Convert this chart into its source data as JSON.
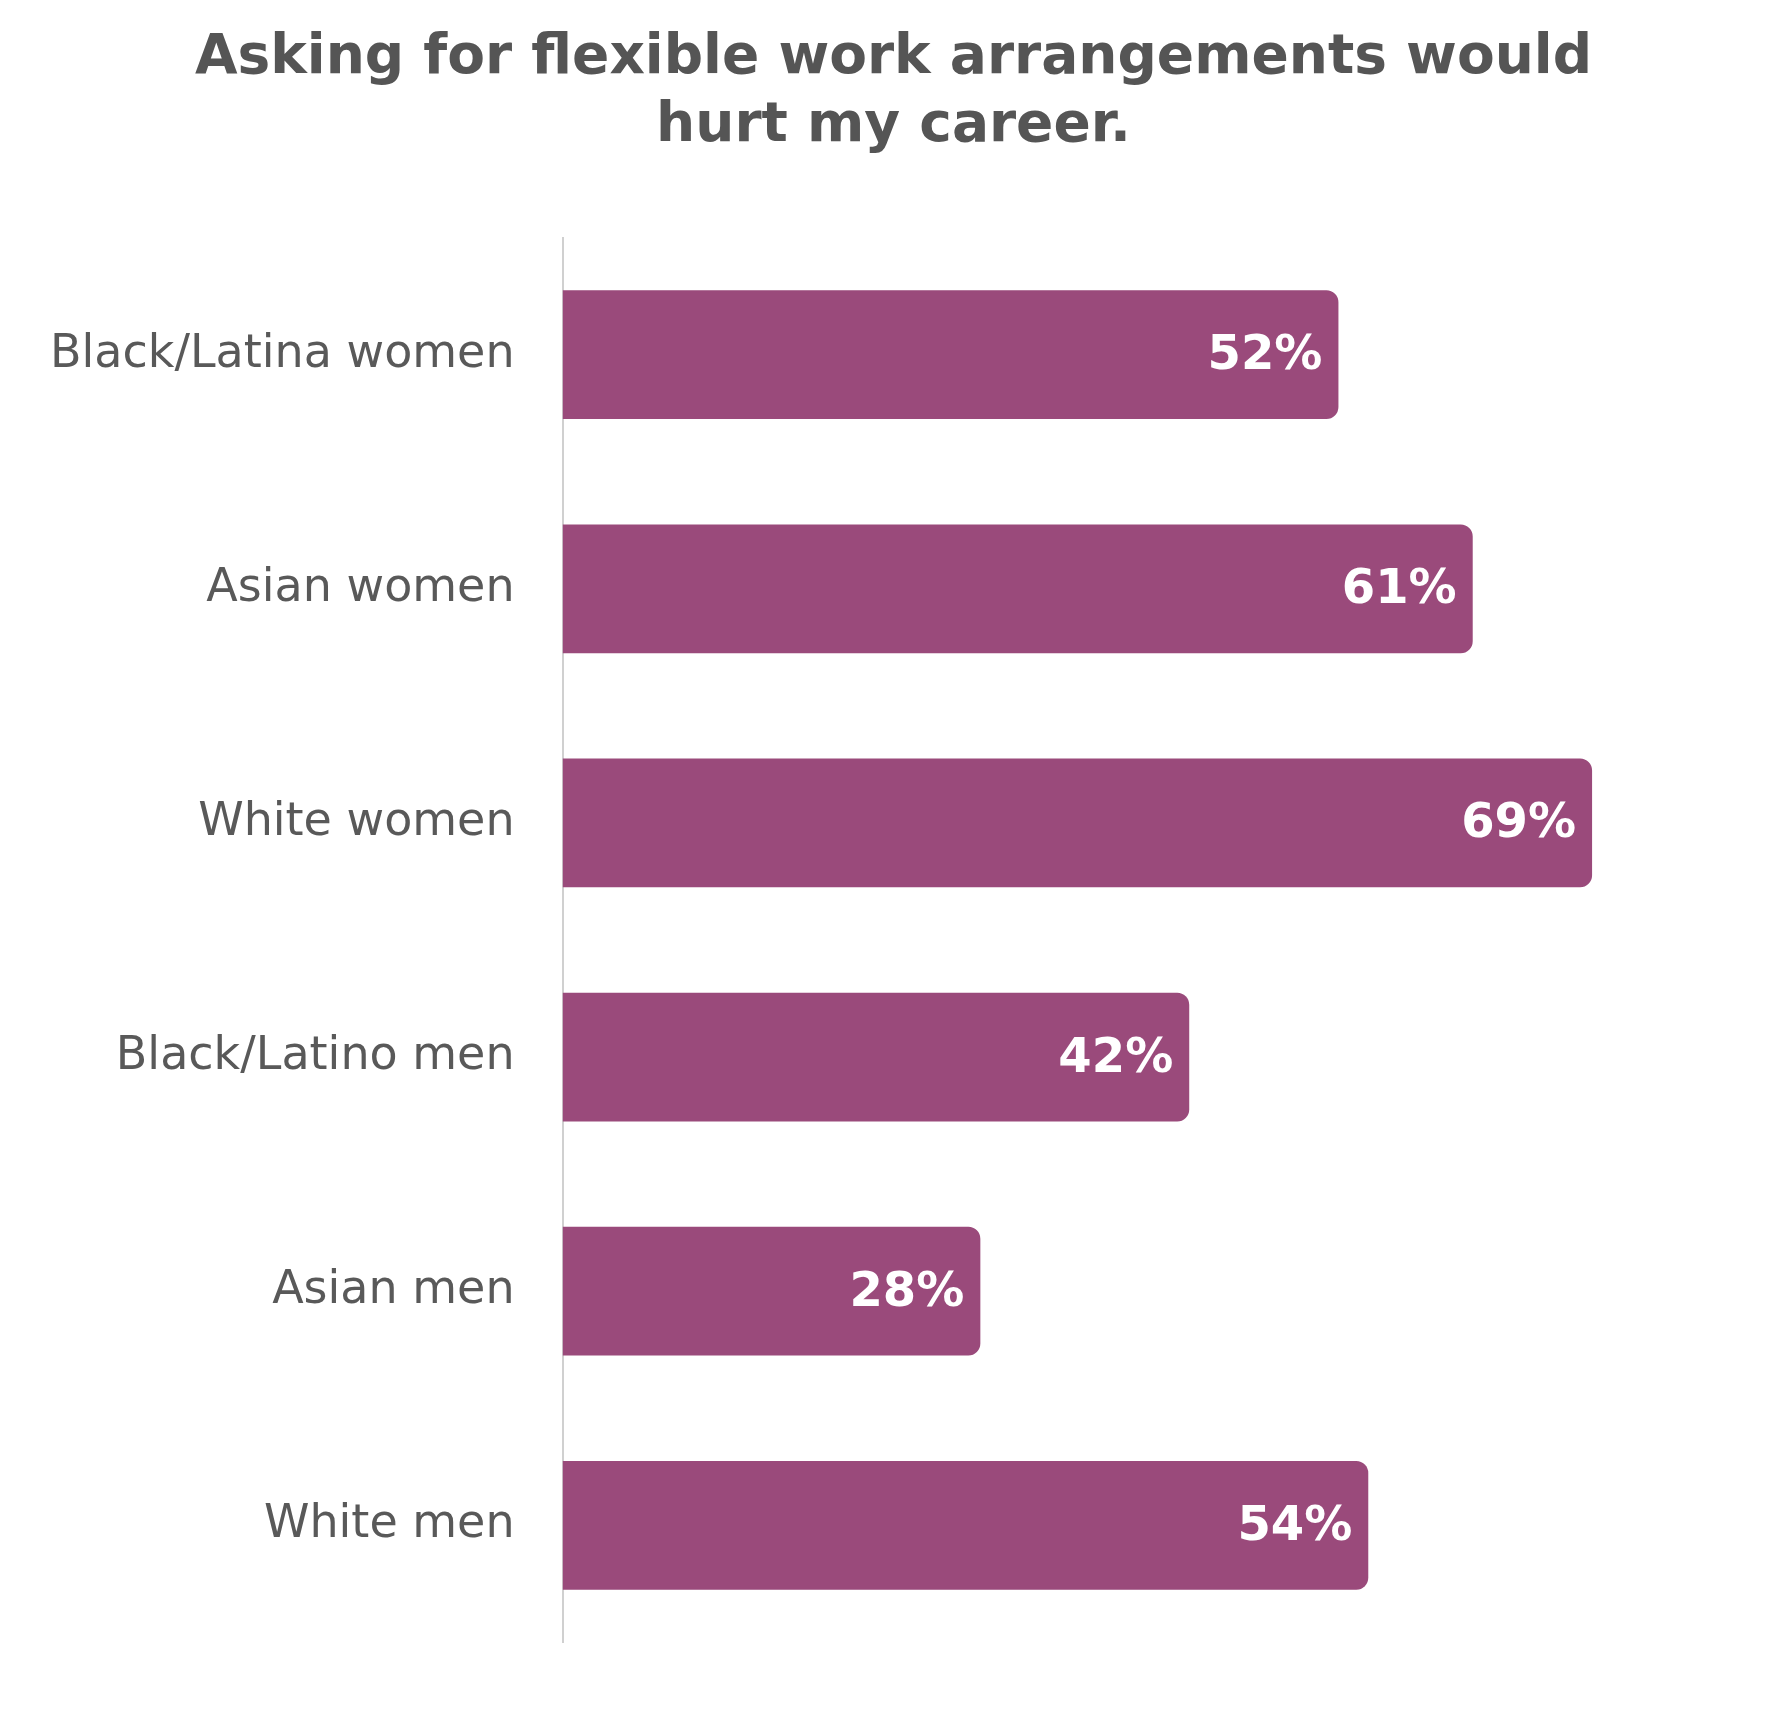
{
  "chart_data": {
    "type": "bar",
    "orientation": "horizontal",
    "title": "Asking for flexible work arrangements would hurt my career.",
    "categories": [
      "Black/Latina women",
      "Asian women",
      "White women",
      "Black/Latino men",
      "Asian men",
      "White men"
    ],
    "values": [
      52,
      61,
      69,
      42,
      28,
      54
    ],
    "value_labels": [
      "52%",
      "61%",
      "69%",
      "42%",
      "28%",
      "54%"
    ],
    "color": "#9a4a7b",
    "tick_labels": "y"
  }
}
